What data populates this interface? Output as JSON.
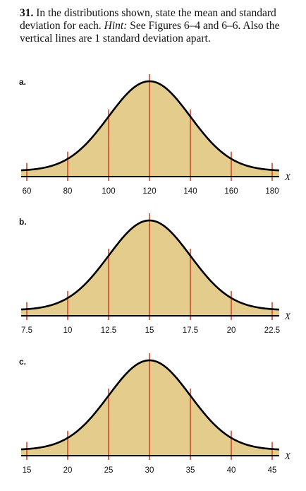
{
  "problem": {
    "number": "31.",
    "text_part1": "In the distributions shown, state the mean and standard deviation for each.",
    "hint_label": "Hint:",
    "text_part2": "See Figures 6–4 and 6–6. Also the vertical lines are 1 standard deviation apart."
  },
  "colors": {
    "fill": "#e3cc8c",
    "curve": "#000000",
    "vline": "#cf4a2c",
    "axis": "#000000"
  },
  "chart_data": [
    {
      "type": "area",
      "label": "a.",
      "x": [
        60,
        80,
        100,
        120,
        140,
        160,
        180
      ],
      "tick_labels": [
        "60",
        "80",
        "100",
        "120",
        "140",
        "160",
        "180"
      ],
      "xlabel": "X"
    },
    {
      "type": "area",
      "label": "b.",
      "x": [
        7.5,
        10,
        12.5,
        15,
        17.5,
        20,
        22.5
      ],
      "tick_labels": [
        "7.5",
        "10",
        "12.5",
        "15",
        "17.5",
        "20",
        "22.5"
      ],
      "xlabel": "X"
    },
    {
      "type": "area",
      "label": "c.",
      "x": [
        15,
        20,
        25,
        30,
        35,
        40,
        45
      ],
      "tick_labels": [
        "15",
        "20",
        "25",
        "30",
        "35",
        "40",
        "45"
      ],
      "xlabel": "X"
    }
  ]
}
